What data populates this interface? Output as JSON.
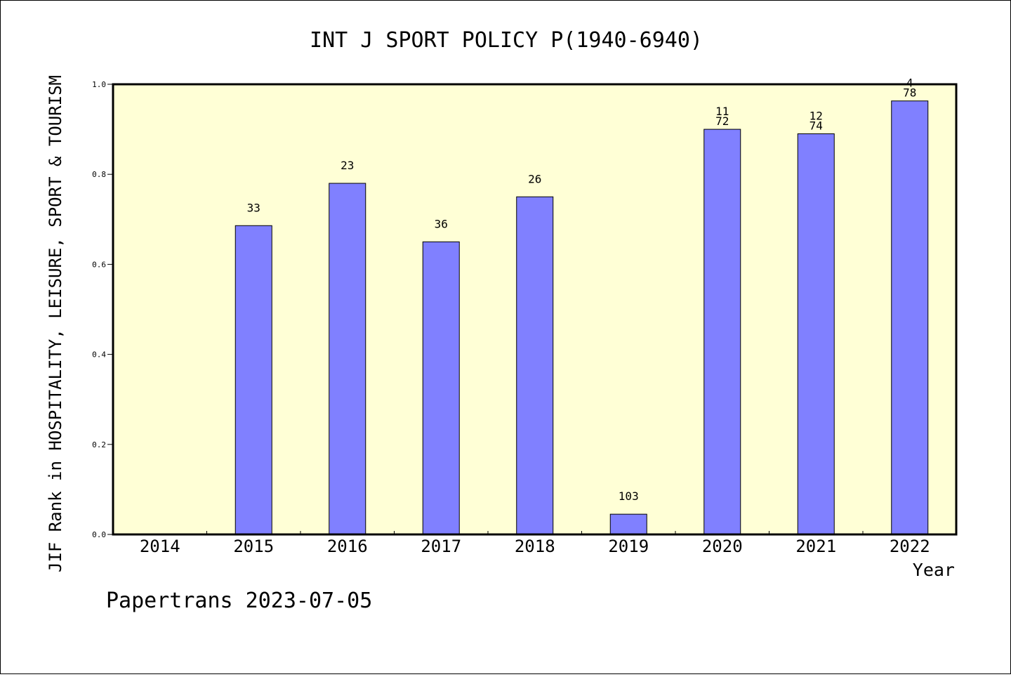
{
  "chart_data": {
    "type": "bar",
    "title": "INT J SPORT POLICY P(1940-6940)",
    "xlabel": "Year",
    "ylabel": "JIF Rank in HOSPITALITY, LEISURE, SPORT & TOURISM",
    "ylim": [
      0,
      1.0
    ],
    "yticks": [
      "0.0",
      "0.2",
      "0.4",
      "0.6",
      "0.8",
      "1.0"
    ],
    "categories": [
      "2014",
      "2015",
      "2016",
      "2017",
      "2018",
      "2019",
      "2020",
      "2021",
      "2022"
    ],
    "values": [
      null,
      0.686,
      0.78,
      0.65,
      0.75,
      0.045,
      0.9,
      0.89,
      0.963
    ],
    "rank_labels": [
      null,
      "33",
      "23",
      "36",
      "26",
      "103",
      "11",
      "12",
      "4"
    ],
    "total_labels": [
      null,
      null,
      null,
      null,
      null,
      null,
      "72",
      "74",
      "78"
    ],
    "colors": {
      "plot_background": "#ffffd6",
      "bar_fill": "#8080ff",
      "bar_stroke": "#000000"
    },
    "grid": false
  },
  "footer": "Papertrans 2023-07-05"
}
